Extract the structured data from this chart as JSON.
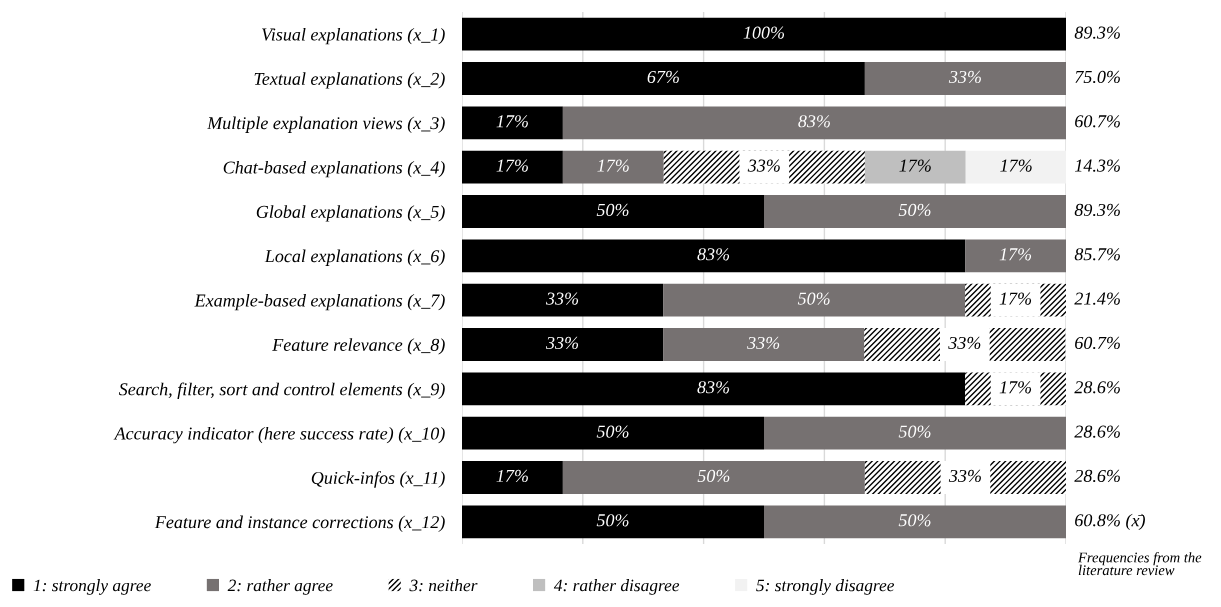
{
  "chart_data": {
    "type": "bar",
    "orientation": "horizontal",
    "stacked": true,
    "categories": [
      "Visual explanations (x_1)",
      "Textual explanations (x_2)",
      "Multiple explanation views (x_3)",
      "Chat-based explanations (x_4)",
      "Global explanations (x_5)",
      "Local explanations (x_6)",
      "Example-based explanations (x_7)",
      "Feature relevance (x_8)",
      "Search, filter, sort and control elements (x_9)",
      "Accuracy indicator (here success rate) (x_10)",
      "Quick-infos (x_11)",
      "Feature and instance corrections (x_12)"
    ],
    "series": [
      {
        "name": "1: strongly agree",
        "color": "#000000",
        "values": [
          100,
          66.7,
          16.7,
          16.7,
          50,
          83.3,
          33.3,
          33.3,
          83.3,
          50,
          16.7,
          50
        ],
        "value_labels": [
          "100%",
          "67%",
          "17%",
          "17%",
          "50%",
          "83%",
          "33%",
          "33%",
          "83%",
          "50%",
          "17%",
          "50%"
        ]
      },
      {
        "name": "2: rather agree",
        "color": "#767171",
        "values": [
          null,
          33.3,
          83.3,
          16.7,
          50,
          16.7,
          50,
          33.3,
          null,
          50,
          50,
          50
        ],
        "value_labels": [
          null,
          "33%",
          "83%",
          "17%",
          "50%",
          "17%",
          "50%",
          "33%",
          null,
          "50%",
          "50%",
          "50%"
        ]
      },
      {
        "name": "3: neither",
        "color": "#000000",
        "values": [
          null,
          null,
          null,
          33.3,
          null,
          null,
          16.7,
          33.3,
          16.7,
          null,
          33.3,
          null
        ],
        "value_labels": [
          null,
          null,
          null,
          "33%",
          null,
          null,
          "17%",
          "33%",
          "17%",
          null,
          "33%",
          null
        ]
      },
      {
        "name": "4: rather disagree",
        "color": "#bfbfbf",
        "values": [
          null,
          null,
          null,
          16.7,
          null,
          null,
          null,
          null,
          null,
          null,
          null,
          null
        ],
        "value_labels": [
          null,
          null,
          null,
          "17%",
          null,
          null,
          null,
          null,
          null,
          null,
          null,
          null
        ]
      },
      {
        "name": "5: strongly disagree",
        "color": "#f2f2f2",
        "values": [
          null,
          null,
          null,
          16.7,
          null,
          null,
          null,
          null,
          null,
          null,
          null,
          null
        ],
        "value_labels": [
          null,
          null,
          null,
          "17%",
          null,
          null,
          null,
          null,
          null,
          null,
          null,
          null
        ]
      }
    ],
    "xlim": [
      0,
      100
    ],
    "xticks": [
      {
        "value": 0,
        "label": null
      },
      {
        "value": 20,
        "label": null
      },
      {
        "value": 40,
        "label": null
      },
      {
        "value": 60,
        "label": null
      },
      {
        "value": 80,
        "label": null
      },
      {
        "value": 100,
        "label": null
      }
    ],
    "grid": "x",
    "tick_labels": "y",
    "legend": "bottom",
    "annotations": [
      "89.3%",
      "75.0%",
      "60.7%",
      "14.3%",
      "89.3%",
      "85.7%",
      "21.4%",
      "60.7%",
      "28.6%",
      "28.6%",
      "28.6%",
      "60.8% (x̄)",
      "Frequencies from the literature review"
    ]
  }
}
